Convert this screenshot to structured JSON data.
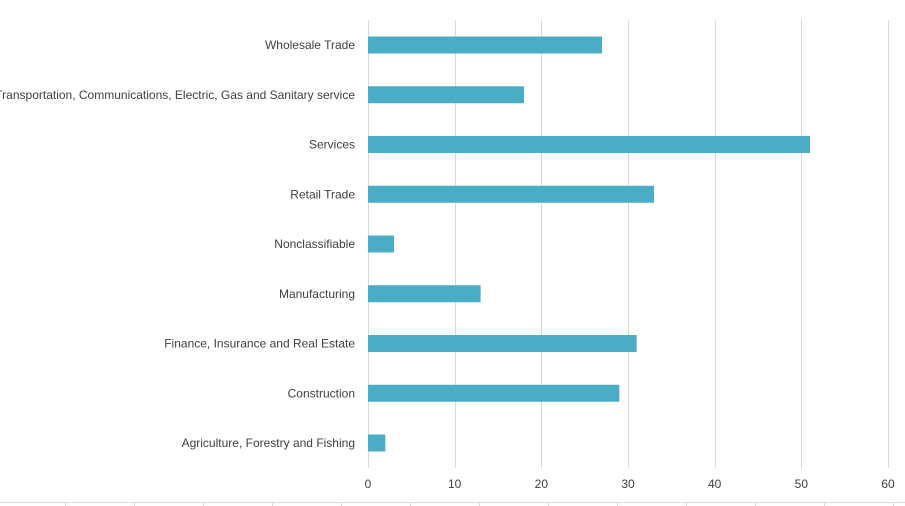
{
  "chart_data": {
    "type": "bar",
    "orientation": "horizontal",
    "title": "",
    "xlabel": "",
    "ylabel": "",
    "categories": [
      "Wholesale Trade",
      "Transportation, Communications, Electric, Gas and Sanitary service",
      "Services",
      "Retail Trade",
      "Nonclassifiable",
      "Manufacturing",
      "Finance, Insurance and Real Estate",
      "Construction",
      "Agriculture, Forestry and Fishing"
    ],
    "values": [
      27,
      18,
      51,
      33,
      3,
      13,
      31,
      29,
      2
    ],
    "xlim": [
      0,
      60
    ],
    "xticks": [
      "0",
      "10",
      "20",
      "30",
      "40",
      "50",
      "60"
    ],
    "grid": true,
    "legend": "none",
    "bar_color": "#4bacc6",
    "grid_color": "#d9d9d9",
    "text_color": "#404040"
  }
}
